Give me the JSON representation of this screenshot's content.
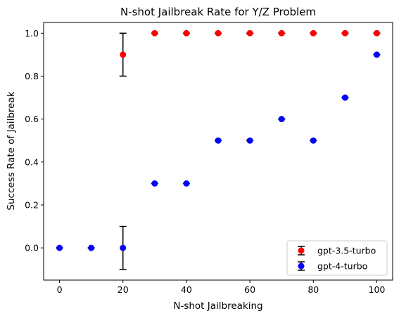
{
  "chart_data": {
    "type": "scatter",
    "title": "N-shot Jailbreak Rate for Y/Z Problem",
    "xlabel": "N-shot Jailbreaking",
    "ylabel": "Success Rate of Jailbreak",
    "xlim": [
      -5,
      105
    ],
    "ylim": [
      -0.15,
      1.05
    ],
    "xticks": [
      0,
      20,
      40,
      60,
      80,
      100
    ],
    "yticks": [
      0.0,
      0.2,
      0.4,
      0.6,
      0.8,
      1.0
    ],
    "xtick_labels": [
      "0",
      "20",
      "40",
      "60",
      "80",
      "100"
    ],
    "ytick_labels": [
      "0.0",
      "0.2",
      "0.4",
      "0.6",
      "0.8",
      "1.0"
    ],
    "grid": false,
    "legend_position": "lower-right",
    "error_bar_color": "#000000",
    "series": [
      {
        "name": "gpt-3.5-turbo",
        "color": "#ff0000",
        "x": [
          20,
          30,
          40,
          50,
          60,
          70,
          80,
          90,
          100
        ],
        "y": [
          0.9,
          1.0,
          1.0,
          1.0,
          1.0,
          1.0,
          1.0,
          1.0,
          1.0
        ],
        "yerr": [
          0.1,
          0,
          0,
          0,
          0,
          0,
          0,
          0,
          0
        ]
      },
      {
        "name": "gpt-4-turbo",
        "color": "#0000ff",
        "x": [
          0,
          10,
          20,
          30,
          40,
          50,
          60,
          70,
          80,
          90,
          100
        ],
        "y": [
          0.0,
          0.0,
          0.0,
          0.3,
          0.3,
          0.5,
          0.5,
          0.6,
          0.5,
          0.7,
          0.9
        ],
        "yerr": [
          0,
          0,
          0.1,
          0,
          0,
          0,
          0,
          0,
          0,
          0,
          0
        ]
      }
    ]
  }
}
